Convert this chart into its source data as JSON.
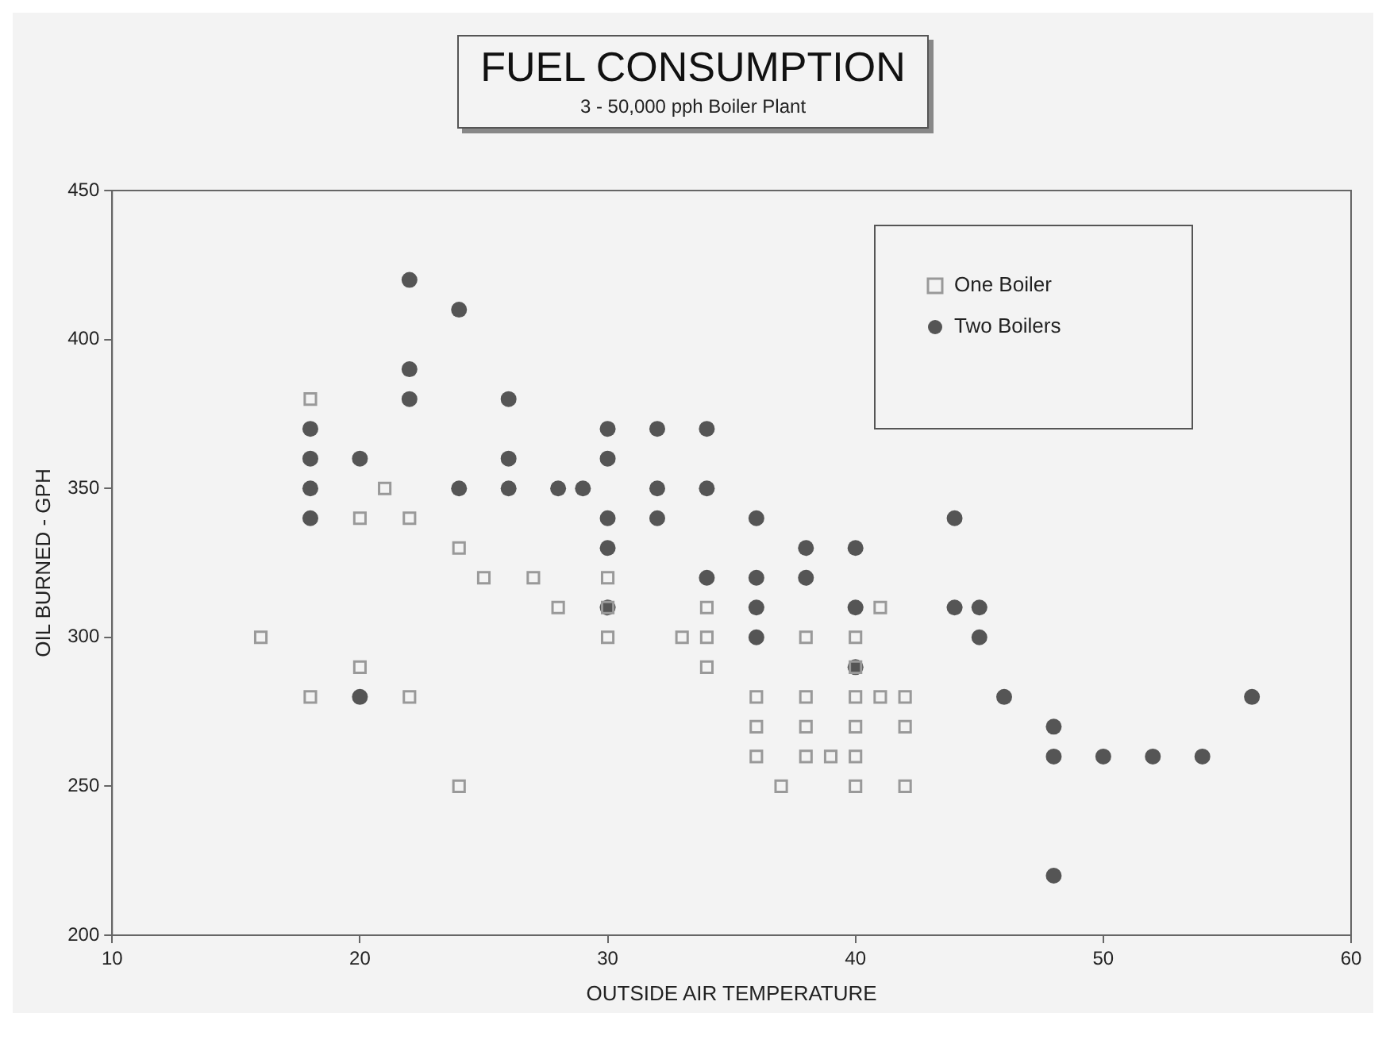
{
  "chart_data": {
    "type": "scatter",
    "title": "FUEL CONSUMPTION",
    "subtitle": "3 - 50,000 pph Boiler Plant",
    "xlabel": "OUTSIDE AIR TEMPERATURE",
    "ylabel": "OIL BURNED - GPH",
    "xlim": [
      10,
      60
    ],
    "xticks": [
      10,
      20,
      30,
      40,
      50,
      60
    ],
    "ylim": [
      200,
      450
    ],
    "yticks": [
      200,
      250,
      300,
      350,
      400,
      450
    ],
    "grid": false,
    "legend": "top right",
    "series": [
      {
        "name": "One Boiler",
        "color": "#999999",
        "marker": "square",
        "x": [
          16,
          18,
          18,
          20,
          20,
          21,
          22,
          22,
          24,
          24,
          25,
          27,
          28,
          30,
          30,
          30,
          33,
          34,
          34,
          34,
          36,
          36,
          36,
          37,
          38,
          38,
          38,
          38,
          39,
          40,
          40,
          40,
          40,
          40,
          40,
          41,
          41,
          42,
          42,
          42
        ],
        "values": [
          300,
          380,
          280,
          340,
          290,
          350,
          340,
          280,
          330,
          250,
          320,
          320,
          310,
          320,
          310,
          300,
          300,
          310,
          300,
          290,
          280,
          270,
          260,
          250,
          300,
          280,
          270,
          260,
          260,
          300,
          290,
          280,
          270,
          260,
          250,
          310,
          280,
          280,
          270,
          250
        ]
      },
      {
        "name": "Two Boilers",
        "color": "#555555",
        "marker": "circle",
        "x": [
          18,
          18,
          18,
          18,
          20,
          20,
          22,
          22,
          22,
          24,
          24,
          26,
          26,
          26,
          28,
          29,
          30,
          30,
          30,
          30,
          30,
          32,
          32,
          32,
          34,
          34,
          34,
          36,
          36,
          36,
          36,
          38,
          38,
          40,
          40,
          40,
          44,
          44,
          45,
          45,
          46,
          48,
          48,
          48,
          50,
          52,
          54,
          56
        ],
        "values": [
          370,
          360,
          350,
          340,
          360,
          280,
          420,
          390,
          380,
          410,
          350,
          380,
          360,
          350,
          350,
          350,
          370,
          360,
          340,
          330,
          310,
          370,
          350,
          340,
          370,
          350,
          320,
          340,
          320,
          310,
          300,
          330,
          320,
          330,
          310,
          290,
          340,
          310,
          310,
          300,
          280,
          270,
          260,
          220,
          260,
          260,
          260,
          280
        ]
      }
    ]
  }
}
